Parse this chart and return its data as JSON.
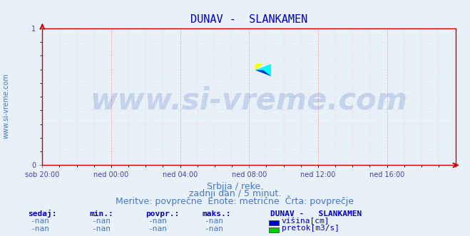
{
  "title": "DUNAV -  SLANKAMEN",
  "title_color": "#0000cc",
  "title_fontsize": 11,
  "bg_color": "#e8f0f8",
  "plot_bg_color": "#e8f0f8",
  "grid_color_major": "#ff9999",
  "grid_color_minor": "#ffcccc",
  "tick_color": "#4444aa",
  "xlim_ticks": [
    0.0,
    0.1667,
    0.3333,
    0.5,
    0.6667,
    0.8333
  ],
  "xlim_labels": [
    "sob 20:00",
    "ned 00:00",
    "ned 04:00",
    "ned 08:00",
    "ned 12:00",
    "ned 16:00"
  ],
  "xlim": [
    0,
    1
  ],
  "ylim": [
    0,
    1
  ],
  "watermark_text": "www.si-vreme.com",
  "watermark_color": "#2255bb",
  "watermark_alpha": 0.18,
  "watermark_fontsize": 30,
  "side_label_text": "www.si-vreme.com",
  "side_label_color": "#4477cc",
  "side_label_fontsize": 7,
  "footer_line1": "Srbija / reke.",
  "footer_line2": "zadnji dan / 5 minut.",
  "footer_line3": "Meritve: povprečne  Enote: metrične  Črta: povprečje",
  "footer_color": "#4477cc",
  "footer_fontsize": 9,
  "table_headers": [
    "sedaj:",
    "min.:",
    "povpr.:",
    "maks.:"
  ],
  "table_values": [
    "-nan",
    "-nan",
    "-nan",
    "-nan"
  ],
  "table_color": "#4477cc",
  "table_header_color": "#0000cc",
  "legend_title": "DUNAV -   SLANKAMEN",
  "legend_items": [
    "višina[cm]",
    "pretok[m3/s]"
  ],
  "legend_colors": [
    "#0000cc",
    "#00cc00"
  ],
  "legend_color": "#0000cc",
  "legend_title_color": "#0000cc",
  "table_fontsize": 8,
  "legend_fontsize": 8,
  "spine_color": "#cc0000"
}
